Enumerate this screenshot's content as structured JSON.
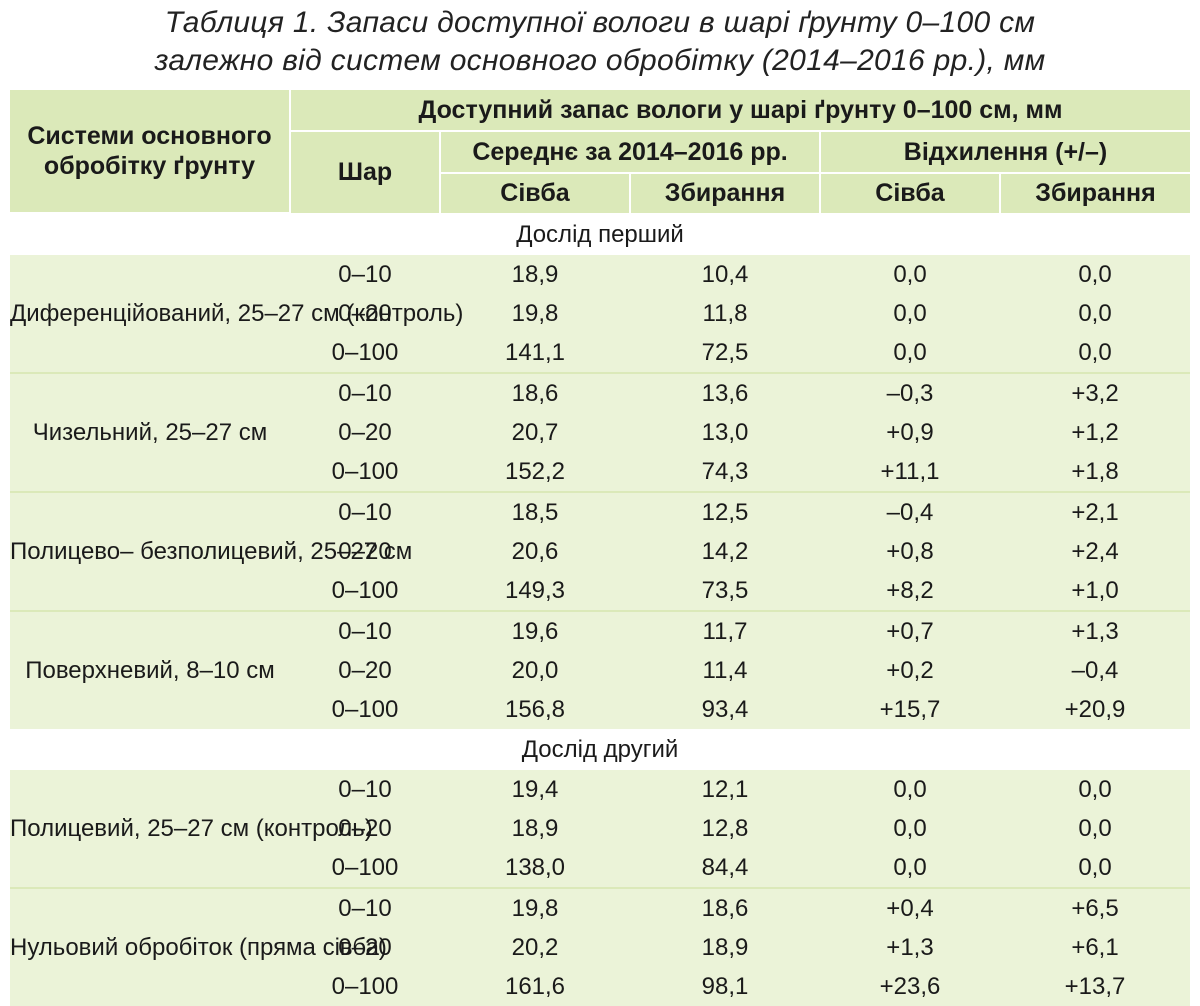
{
  "caption": {
    "line1": "Таблиця 1. Запаси доступної вологи в шарі ґрунту 0–100 см",
    "line2": "залежно від систем основного обробітку (2014–2016 рр.), мм"
  },
  "header": {
    "systems": "Системи основного обробітку ґрунту",
    "available_stock": "Доступний запас вологи у шарі ґрунту 0–100 см, мм",
    "layer": "Шар",
    "average": "Середнє за 2014–2016 рр.",
    "deviation": "Відхилення (+/–)",
    "sowing": "Сівба",
    "harvest": "Збирання",
    "deviation_sowing": "Сівба",
    "deviation_harvest": "Збирання"
  },
  "sections": [
    {
      "title": "Дослід перший",
      "groups": [
        {
          "system": "Диференційований, 25–27 см (контроль)",
          "rows": [
            {
              "layer": "0–10",
              "avg_sowing": "18,9",
              "avg_harvest": "10,4",
              "dev_sowing": "0,0",
              "dev_harvest": "0,0"
            },
            {
              "layer": "0–20",
              "avg_sowing": "19,8",
              "avg_harvest": "11,8",
              "dev_sowing": "0,0",
              "dev_harvest": "0,0"
            },
            {
              "layer": "0–100",
              "avg_sowing": "141,1",
              "avg_harvest": "72,5",
              "dev_sowing": "0,0",
              "dev_harvest": "0,0"
            }
          ]
        },
        {
          "system": "Чизельний, 25–27 см",
          "rows": [
            {
              "layer": "0–10",
              "avg_sowing": "18,6",
              "avg_harvest": "13,6",
              "dev_sowing": "–0,3",
              "dev_harvest": "+3,2"
            },
            {
              "layer": "0–20",
              "avg_sowing": "20,7",
              "avg_harvest": "13,0",
              "dev_sowing": "+0,9",
              "dev_harvest": "+1,2"
            },
            {
              "layer": "0–100",
              "avg_sowing": "152,2",
              "avg_harvest": "74,3",
              "dev_sowing": "+11,1",
              "dev_harvest": "+1,8"
            }
          ]
        },
        {
          "system": "Полицево– безполицевий, 25–27 см",
          "rows": [
            {
              "layer": "0–10",
              "avg_sowing": "18,5",
              "avg_harvest": "12,5",
              "dev_sowing": "–0,4",
              "dev_harvest": "+2,1"
            },
            {
              "layer": "0–20",
              "avg_sowing": "20,6",
              "avg_harvest": "14,2",
              "dev_sowing": "+0,8",
              "dev_harvest": "+2,4"
            },
            {
              "layer": "0–100",
              "avg_sowing": "149,3",
              "avg_harvest": "73,5",
              "dev_sowing": "+8,2",
              "dev_harvest": "+1,0"
            }
          ]
        },
        {
          "system": "Поверхневий, 8–10 см",
          "rows": [
            {
              "layer": "0–10",
              "avg_sowing": "19,6",
              "avg_harvest": "11,7",
              "dev_sowing": "+0,7",
              "dev_harvest": "+1,3"
            },
            {
              "layer": "0–20",
              "avg_sowing": "20,0",
              "avg_harvest": "11,4",
              "dev_sowing": "+0,2",
              "dev_harvest": "–0,4"
            },
            {
              "layer": "0–100",
              "avg_sowing": "156,8",
              "avg_harvest": "93,4",
              "dev_sowing": "+15,7",
              "dev_harvest": "+20,9"
            }
          ]
        }
      ]
    },
    {
      "title": "Дослід другий",
      "groups": [
        {
          "system": "Полицевий, 25–27 см (контроль)",
          "rows": [
            {
              "layer": "0–10",
              "avg_sowing": "19,4",
              "avg_harvest": "12,1",
              "dev_sowing": "0,0",
              "dev_harvest": "0,0"
            },
            {
              "layer": "0–20",
              "avg_sowing": "18,9",
              "avg_harvest": "12,8",
              "dev_sowing": "0,0",
              "dev_harvest": "0,0"
            },
            {
              "layer": "0–100",
              "avg_sowing": "138,0",
              "avg_harvest": "84,4",
              "dev_sowing": "0,0",
              "dev_harvest": "0,0"
            }
          ]
        },
        {
          "system": "Нульовий обробіток (пряма сівба)",
          "rows": [
            {
              "layer": "0–10",
              "avg_sowing": "19,8",
              "avg_harvest": "18,6",
              "dev_sowing": "+0,4",
              "dev_harvest": "+6,5"
            },
            {
              "layer": "0–20",
              "avg_sowing": "20,2",
              "avg_harvest": "18,9",
              "dev_sowing": "+1,3",
              "dev_harvest": "+6,1"
            },
            {
              "layer": "0–100",
              "avg_sowing": "161,6",
              "avg_harvest": "98,1",
              "dev_sowing": "+23,6",
              "dev_harvest": "+13,7"
            }
          ]
        }
      ]
    }
  ],
  "colors": {
    "header_bg": "#dbe9b9",
    "row_shade": "#ebf3d8"
  }
}
